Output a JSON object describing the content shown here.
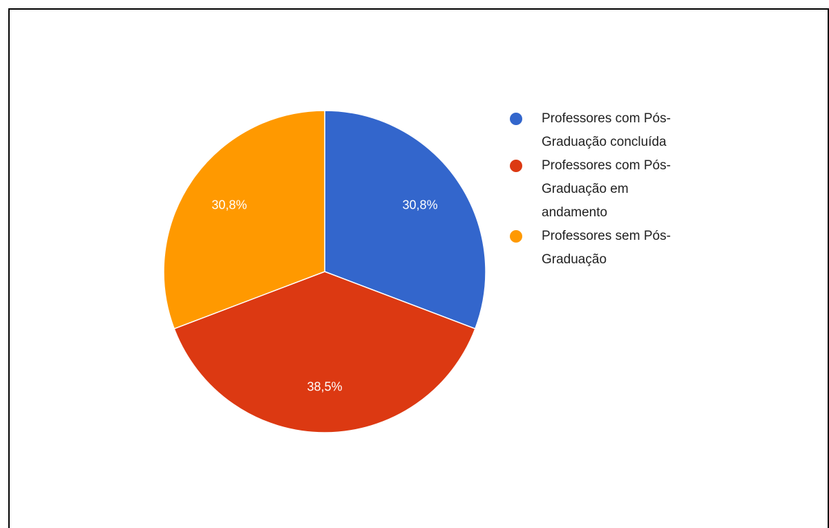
{
  "chart_data": {
    "type": "pie",
    "categories": [
      "Professores com Pós-Graduação concluída",
      "Professores com Pós-Graduação em andamento",
      "Professores sem Pós-Graduação"
    ],
    "values": [
      30.8,
      38.5,
      30.8
    ],
    "value_labels": [
      "30,8%",
      "38,5%",
      "30,8%"
    ],
    "colors": [
      "#3366cc",
      "#dc3912",
      "#ff9900"
    ],
    "legend": "right"
  }
}
